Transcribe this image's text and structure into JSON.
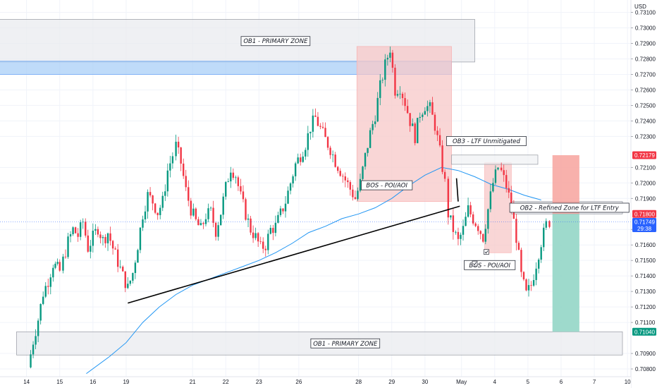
{
  "chart_data": {
    "type": "candlestick",
    "currency": "USD",
    "y_range": [
      0.7075,
      0.7318
    ],
    "y_ticks": [
      "0.73100",
      "0.73000",
      "0.72900",
      "0.72800",
      "0.72700",
      "0.72600",
      "0.72500",
      "0.72400",
      "0.72300",
      "0.72100",
      "0.72000",
      "0.71900",
      "0.71700",
      "0.71600",
      "0.71500",
      "0.71400",
      "0.71300",
      "0.71200",
      "0.71100",
      "0.70900",
      "0.70800"
    ],
    "x_ticks": [
      {
        "label": "14",
        "t": 0.5
      },
      {
        "label": "15",
        "t": 1.5
      },
      {
        "label": "16",
        "t": 2.5
      },
      {
        "label": "19",
        "t": 3.5
      },
      {
        "label": "21",
        "t": 5.5
      },
      {
        "label": "22",
        "t": 6.5
      },
      {
        "label": "23",
        "t": 7.5
      },
      {
        "label": "26",
        "t": 8.7
      },
      {
        "label": "28",
        "t": 10.5
      },
      {
        "label": "29",
        "t": 11.5
      },
      {
        "label": "30",
        "t": 12.5
      },
      {
        "label": "May",
        "t": 13.6
      },
      {
        "label": "4",
        "t": 14.6
      },
      {
        "label": "5",
        "t": 15.6
      },
      {
        "label": "6",
        "t": 16.6
      },
      {
        "label": "7",
        "t": 17.6
      },
      {
        "label": "10",
        "t": 18.6
      }
    ],
    "price_path": [
      [
        0.55,
        0.7081
      ],
      [
        0.7,
        0.7098
      ],
      [
        0.85,
        0.7112
      ],
      [
        1.0,
        0.7129
      ],
      [
        1.15,
        0.7137
      ],
      [
        1.3,
        0.7148
      ],
      [
        1.5,
        0.7143
      ],
      [
        1.6,
        0.715
      ],
      [
        1.75,
        0.7162
      ],
      [
        1.9,
        0.717
      ],
      [
        2.05,
        0.7166
      ],
      [
        2.2,
        0.7175
      ],
      [
        2.35,
        0.7158
      ],
      [
        2.5,
        0.7165
      ],
      [
        2.65,
        0.7171
      ],
      [
        2.8,
        0.7163
      ],
      [
        2.95,
        0.7168
      ],
      [
        3.1,
        0.7158
      ],
      [
        3.25,
        0.7149
      ],
      [
        3.4,
        0.714
      ],
      [
        3.55,
        0.7132
      ],
      [
        3.7,
        0.7142
      ],
      [
        3.85,
        0.716
      ],
      [
        4.0,
        0.718
      ],
      [
        4.15,
        0.7192
      ],
      [
        4.3,
        0.7188
      ],
      [
        4.45,
        0.7181
      ],
      [
        4.6,
        0.7188
      ],
      [
        4.75,
        0.7208
      ],
      [
        4.9,
        0.7218
      ],
      [
        5.0,
        0.7224
      ],
      [
        5.15,
        0.7213
      ],
      [
        5.3,
        0.7195
      ],
      [
        5.45,
        0.7183
      ],
      [
        5.6,
        0.7175
      ],
      [
        5.75,
        0.717
      ],
      [
        5.9,
        0.7179
      ],
      [
        6.05,
        0.7181
      ],
      [
        6.2,
        0.7169
      ],
      [
        6.35,
        0.7181
      ],
      [
        6.5,
        0.7197
      ],
      [
        6.65,
        0.721
      ],
      [
        6.8,
        0.7205
      ],
      [
        6.95,
        0.7191
      ],
      [
        7.1,
        0.718
      ],
      [
        7.25,
        0.717
      ],
      [
        7.4,
        0.7165
      ],
      [
        7.55,
        0.7158
      ],
      [
        7.7,
        0.716
      ],
      [
        7.85,
        0.717
      ],
      [
        8.0,
        0.7172
      ],
      [
        8.15,
        0.718
      ],
      [
        8.3,
        0.7188
      ],
      [
        8.45,
        0.72
      ],
      [
        8.6,
        0.7212
      ],
      [
        8.75,
        0.7218
      ],
      [
        8.9,
        0.7225
      ],
      [
        9.05,
        0.7236
      ],
      [
        9.2,
        0.7242
      ],
      [
        9.35,
        0.7235
      ],
      [
        9.5,
        0.7228
      ],
      [
        9.65,
        0.7222
      ],
      [
        9.8,
        0.7214
      ],
      [
        9.95,
        0.7208
      ],
      [
        10.1,
        0.7202
      ],
      [
        10.25,
        0.7196
      ],
      [
        10.4,
        0.719
      ],
      [
        10.55,
        0.72
      ],
      [
        10.7,
        0.7217
      ],
      [
        10.85,
        0.7232
      ],
      [
        11.0,
        0.7244
      ],
      [
        11.15,
        0.7262
      ],
      [
        11.3,
        0.7276
      ],
      [
        11.45,
        0.7287
      ],
      [
        11.6,
        0.726
      ],
      [
        11.75,
        0.7262
      ],
      [
        11.9,
        0.7252
      ],
      [
        12.05,
        0.724
      ],
      [
        12.2,
        0.723
      ],
      [
        12.35,
        0.7245
      ],
      [
        12.5,
        0.725
      ],
      [
        12.65,
        0.7248
      ],
      [
        12.8,
        0.7237
      ],
      [
        12.95,
        0.722
      ],
      [
        13.1,
        0.72
      ],
      [
        13.2,
        0.718
      ],
      [
        13.35,
        0.717
      ],
      [
        13.5,
        0.7162
      ],
      [
        13.65,
        0.717
      ],
      [
        13.8,
        0.7183
      ],
      [
        13.95,
        0.7177
      ],
      [
        14.1,
        0.7172
      ],
      [
        14.25,
        0.7165
      ],
      [
        14.4,
        0.7183
      ],
      [
        14.55,
        0.72
      ],
      [
        14.7,
        0.721
      ],
      [
        14.8,
        0.7207
      ],
      [
        14.95,
        0.7198
      ],
      [
        15.1,
        0.7185
      ],
      [
        15.25,
        0.7165
      ],
      [
        15.4,
        0.714
      ],
      [
        15.55,
        0.7128
      ],
      [
        15.7,
        0.7134
      ],
      [
        15.85,
        0.7148
      ],
      [
        16.0,
        0.7162
      ],
      [
        16.15,
        0.7173
      ],
      [
        16.25,
        0.7175
      ]
    ],
    "moving_average": [
      [
        2.3,
        0.7077
      ],
      [
        3.0,
        0.7088
      ],
      [
        3.5,
        0.7097
      ],
      [
        4.0,
        0.711
      ],
      [
        4.5,
        0.712
      ],
      [
        5.0,
        0.7128
      ],
      [
        5.5,
        0.7134
      ],
      [
        6.0,
        0.7138
      ],
      [
        6.5,
        0.7142
      ],
      [
        7.0,
        0.7146
      ],
      [
        7.5,
        0.715
      ],
      [
        8.0,
        0.7155
      ],
      [
        8.5,
        0.7161
      ],
      [
        9.0,
        0.7168
      ],
      [
        9.5,
        0.7172
      ],
      [
        10.0,
        0.7177
      ],
      [
        10.5,
        0.718
      ],
      [
        11.0,
        0.7184
      ],
      [
        11.5,
        0.719
      ],
      [
        12.0,
        0.7198
      ],
      [
        12.5,
        0.7205
      ],
      [
        13.0,
        0.721
      ],
      [
        13.5,
        0.7208
      ],
      [
        14.0,
        0.7204
      ],
      [
        14.5,
        0.7199
      ],
      [
        15.0,
        0.7196
      ],
      [
        15.5,
        0.7192
      ],
      [
        16.0,
        0.7189
      ]
    ],
    "trendlines": [
      {
        "from": [
          3.55,
          0.71225
        ],
        "to": [
          13.55,
          0.7185
        ]
      },
      {
        "from": [
          13.45,
          0.7203
        ],
        "to": [
          13.5,
          0.7188
        ]
      }
    ],
    "zones": [
      {
        "label": "OB1 - PRIMARY ZONE",
        "x": [
          -0.5,
          14.0
        ],
        "y": [
          0.7278,
          0.73055
        ],
        "fill": "#e9ebef",
        "stroke": "#9598a1"
      },
      {
        "label": "",
        "x": [
          -0.5,
          13.3
        ],
        "y": [
          0.727,
          0.72785
        ],
        "fill": "#a9cff7",
        "stroke": "#5b9cf6"
      },
      {
        "label": "",
        "x": [
          10.45,
          13.3
        ],
        "y": [
          0.7188,
          0.7288
        ],
        "fill": "#f7c8c8",
        "stroke": "#f7b0b0"
      },
      {
        "label": "",
        "x": [
          14.3,
          15.1
        ],
        "y": [
          0.7155,
          0.7213
        ],
        "fill": "#f7c8c8",
        "stroke": "#f7b0b0"
      },
      {
        "label": "OB3 - LTF Unmitigated",
        "x": [
          13.3,
          15.9
        ],
        "y": [
          0.7212,
          0.7218
        ],
        "fill": "#f0f1f4",
        "stroke": "#9598a1"
      },
      {
        "label": "OB2 - Refined Zone for LTF Entry",
        "x": [
          15.1,
          18.5
        ],
        "y": [
          0.718,
          0.7188
        ],
        "fill": "#e9ebef",
        "stroke": "#9598a1"
      },
      {
        "label": "OB1 - PRIMARY ZONE",
        "x": [
          0.2,
          18.5
        ],
        "y": [
          0.7089,
          0.7104
        ],
        "fill": "#e9ebef",
        "stroke": "#9598a1"
      }
    ],
    "position": {
      "x": [
        16.34,
        17.15
      ],
      "entry": 0.718,
      "stop": 0.72179,
      "target": 0.7104,
      "risk_color": "#f7a39d",
      "reward_color": "#94d6c6"
    },
    "annotations": [
      {
        "text": "BOS - POI/AOI",
        "t": 11.35,
        "price": 0.71985
      },
      {
        "text": "BOS - POI/AOI",
        "t": 14.45,
        "price": 0.7147
      }
    ],
    "current_price_line": 0.71749,
    "price_labels": [
      {
        "text": "0.72179",
        "price": 0.72179,
        "bg": "#f23645"
      },
      {
        "text": "0.71800",
        "price": 0.718,
        "bg": "#f23645"
      },
      {
        "text": "0.71749",
        "price": 0.71749,
        "bg": "#2962ff",
        "sub": "29:38"
      },
      {
        "text": "0.71040",
        "price": 0.7104,
        "bg": "#089981"
      }
    ],
    "colors": {
      "up": "#089981",
      "down": "#f23645",
      "ma": "#2196f3",
      "current": "#2962ff",
      "trendline": "#000000"
    }
  }
}
